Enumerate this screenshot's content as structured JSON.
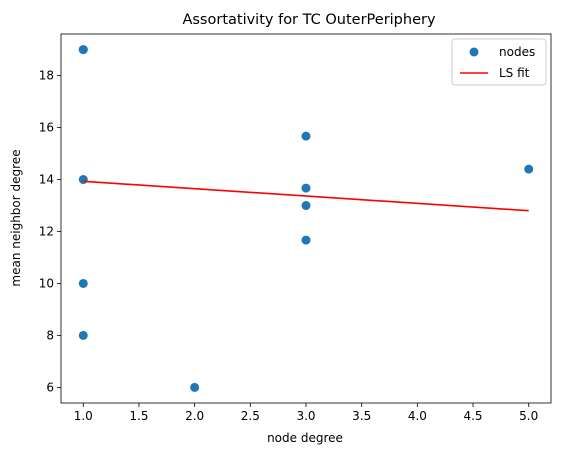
{
  "chart_data": {
    "type": "scatter",
    "title": "Assortativity for TC OuterPeriphery",
    "xlabel": "node degree",
    "ylabel": "mean neighbor degree",
    "xlim": [
      0.8,
      5.2
    ],
    "ylim": [
      5.4,
      19.6
    ],
    "xticks": [
      "1.0",
      "1.5",
      "2.0",
      "2.5",
      "3.0",
      "3.5",
      "4.0",
      "4.5",
      "5.0"
    ],
    "yticks": [
      "6",
      "8",
      "10",
      "12",
      "14",
      "16",
      "18"
    ],
    "legend_position": "top-right",
    "series": [
      {
        "name": "nodes",
        "kind": "scatter",
        "color": "#1f77b4",
        "points": [
          [
            1,
            19
          ],
          [
            1,
            19
          ],
          [
            1,
            14
          ],
          [
            1,
            10
          ],
          [
            1,
            8
          ],
          [
            2,
            6
          ],
          [
            3,
            15.67
          ],
          [
            3,
            13.67
          ],
          [
            3,
            13
          ],
          [
            3,
            11.67
          ],
          [
            5,
            14.4
          ]
        ]
      },
      {
        "name": "LS fit",
        "kind": "line",
        "color": "#ff0000",
        "points": [
          [
            1,
            13.93
          ],
          [
            5,
            12.8
          ]
        ]
      }
    ]
  }
}
